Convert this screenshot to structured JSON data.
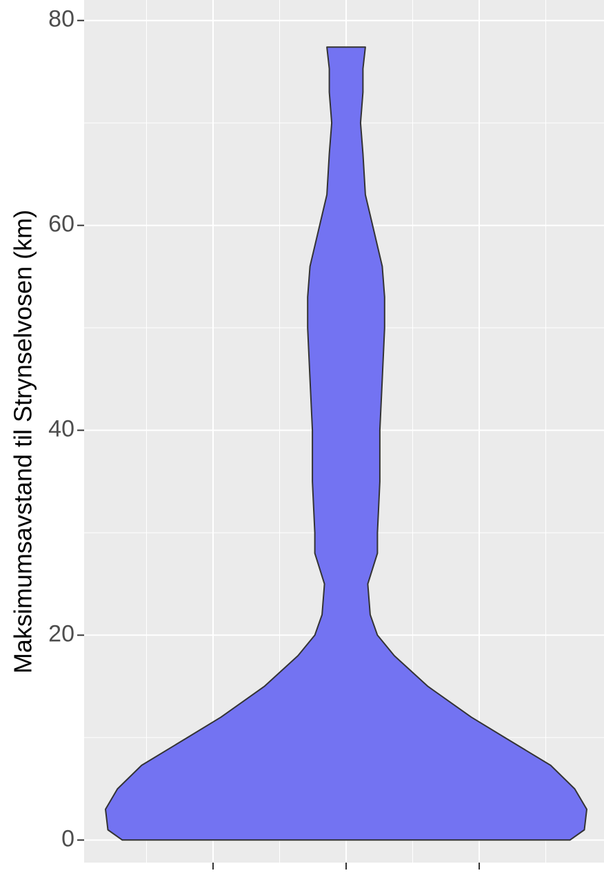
{
  "chart_data": {
    "type": "violin",
    "y_label": "Maksimumsavstand til Strynselvosen (km)",
    "categories": [
      null,
      null,
      null
    ],
    "violin_category": 1,
    "ylim": [
      -2.2,
      82
    ],
    "yticks": [
      0,
      20,
      40,
      60,
      80
    ],
    "minor_yticks": [
      10,
      30,
      50,
      70
    ],
    "grid": true,
    "fill": "#7373f2",
    "stroke": "#333333",
    "violin": {
      "y": [
        0,
        1,
        3,
        5,
        7.3,
        10,
        12,
        15,
        18,
        20,
        22,
        25,
        28,
        30,
        35,
        40,
        45,
        50,
        53,
        56,
        60,
        63,
        67,
        70,
        73,
        75.3,
        77.4
      ],
      "width": [
        0.93,
        0.99,
        1.0,
        0.95,
        0.85,
        0.66,
        0.52,
        0.34,
        0.2,
        0.13,
        0.1,
        0.09,
        0.13,
        0.13,
        0.14,
        0.14,
        0.15,
        0.16,
        0.16,
        0.15,
        0.11,
        0.08,
        0.07,
        0.06,
        0.07,
        0.07,
        0.08
      ]
    }
  }
}
